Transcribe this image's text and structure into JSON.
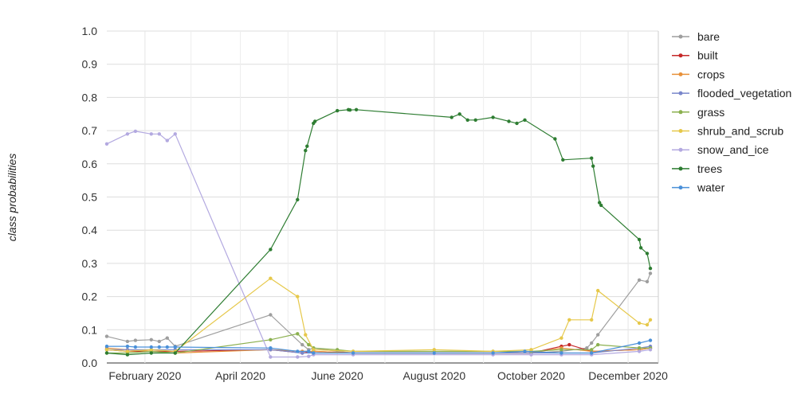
{
  "chart_data": {
    "type": "line",
    "ylabel": "class probabilities",
    "ylim": [
      0,
      1.0
    ],
    "y_ticks": [
      "0.0",
      "0.1",
      "0.2",
      "0.3",
      "0.4",
      "0.5",
      "0.6",
      "0.7",
      "0.8",
      "0.9",
      "1.0"
    ],
    "x_range": [
      "2020-01-08",
      "2020-12-20"
    ],
    "x_ticks": [
      {
        "date": "2020-02-01",
        "label": "February 2020"
      },
      {
        "date": "2020-04-01",
        "label": "April 2020"
      },
      {
        "date": "2020-06-01",
        "label": "June 2020"
      },
      {
        "date": "2020-08-01",
        "label": "August 2020"
      },
      {
        "date": "2020-10-01",
        "label": "October 2020"
      },
      {
        "date": "2020-12-01",
        "label": "December 2020"
      }
    ],
    "grid": true,
    "legend_position": "right",
    "series": [
      {
        "name": "bare",
        "color": "#9e9e9e",
        "points": [
          [
            "2020-01-08",
            0.08
          ],
          [
            "2020-01-21",
            0.065
          ],
          [
            "2020-01-26",
            0.068
          ],
          [
            "2020-02-05",
            0.07
          ],
          [
            "2020-02-10",
            0.065
          ],
          [
            "2020-02-15",
            0.075
          ],
          [
            "2020-02-20",
            0.05
          ],
          [
            "2020-04-20",
            0.145
          ],
          [
            "2020-05-10",
            0.055
          ],
          [
            "2020-05-14",
            0.04
          ],
          [
            "2020-05-17",
            0.045
          ],
          [
            "2020-06-01",
            0.035
          ],
          [
            "2020-06-11",
            0.03
          ],
          [
            "2020-09-07",
            0.03
          ],
          [
            "2020-10-01",
            0.03
          ],
          [
            "2020-10-20",
            0.035
          ],
          [
            "2020-11-05",
            0.045
          ],
          [
            "2020-11-08",
            0.06
          ],
          [
            "2020-11-12",
            0.085
          ],
          [
            "2020-12-08",
            0.25
          ],
          [
            "2020-12-13",
            0.245
          ],
          [
            "2020-12-15",
            0.27
          ]
        ]
      },
      {
        "name": "built",
        "color": "#c62828",
        "points": [
          [
            "2020-01-08",
            0.04
          ],
          [
            "2020-01-21",
            0.035
          ],
          [
            "2020-02-05",
            0.035
          ],
          [
            "2020-02-20",
            0.035
          ],
          [
            "2020-04-20",
            0.04
          ],
          [
            "2020-05-10",
            0.03
          ],
          [
            "2020-05-17",
            0.035
          ],
          [
            "2020-06-11",
            0.03
          ],
          [
            "2020-09-07",
            0.03
          ],
          [
            "2020-10-01",
            0.03
          ],
          [
            "2020-10-20",
            0.05
          ],
          [
            "2020-10-25",
            0.055
          ],
          [
            "2020-11-08",
            0.035
          ],
          [
            "2020-12-08",
            0.04
          ],
          [
            "2020-12-15",
            0.045
          ]
        ]
      },
      {
        "name": "crops",
        "color": "#e8913a",
        "points": [
          [
            "2020-01-08",
            0.045
          ],
          [
            "2020-01-21",
            0.04
          ],
          [
            "2020-02-05",
            0.035
          ],
          [
            "2020-02-20",
            0.03
          ],
          [
            "2020-04-20",
            0.04
          ],
          [
            "2020-05-10",
            0.035
          ],
          [
            "2020-05-17",
            0.035
          ],
          [
            "2020-06-11",
            0.03
          ],
          [
            "2020-09-07",
            0.03
          ],
          [
            "2020-10-01",
            0.03
          ],
          [
            "2020-10-20",
            0.045
          ],
          [
            "2020-11-08",
            0.035
          ],
          [
            "2020-12-08",
            0.04
          ],
          [
            "2020-12-15",
            0.045
          ]
        ]
      },
      {
        "name": "flooded_vegetation",
        "color": "#7986cb",
        "points": [
          [
            "2020-01-08",
            0.04
          ],
          [
            "2020-01-21",
            0.04
          ],
          [
            "2020-02-05",
            0.04
          ],
          [
            "2020-02-20",
            0.04
          ],
          [
            "2020-04-20",
            0.04
          ],
          [
            "2020-05-10",
            0.03
          ],
          [
            "2020-05-17",
            0.03
          ],
          [
            "2020-06-11",
            0.03
          ],
          [
            "2020-09-07",
            0.03
          ],
          [
            "2020-10-01",
            0.03
          ],
          [
            "2020-10-20",
            0.03
          ],
          [
            "2020-11-08",
            0.03
          ],
          [
            "2020-12-08",
            0.045
          ],
          [
            "2020-12-15",
            0.05
          ]
        ]
      },
      {
        "name": "grass",
        "color": "#8bb04f",
        "points": [
          [
            "2020-01-08",
            0.03
          ],
          [
            "2020-01-21",
            0.03
          ],
          [
            "2020-02-05",
            0.035
          ],
          [
            "2020-02-20",
            0.03
          ],
          [
            "2020-04-20",
            0.07
          ],
          [
            "2020-05-07",
            0.088
          ],
          [
            "2020-05-14",
            0.055
          ],
          [
            "2020-05-17",
            0.045
          ],
          [
            "2020-06-01",
            0.04
          ],
          [
            "2020-06-11",
            0.035
          ],
          [
            "2020-09-07",
            0.035
          ],
          [
            "2020-10-01",
            0.035
          ],
          [
            "2020-10-20",
            0.04
          ],
          [
            "2020-11-08",
            0.04
          ],
          [
            "2020-11-12",
            0.055
          ],
          [
            "2020-12-08",
            0.045
          ],
          [
            "2020-12-15",
            0.045
          ]
        ]
      },
      {
        "name": "shrub_and_scrub",
        "color": "#e6c84a",
        "points": [
          [
            "2020-01-08",
            0.04
          ],
          [
            "2020-01-21",
            0.035
          ],
          [
            "2020-02-05",
            0.04
          ],
          [
            "2020-02-20",
            0.035
          ],
          [
            "2020-04-20",
            0.255
          ],
          [
            "2020-05-07",
            0.2
          ],
          [
            "2020-05-12",
            0.085
          ],
          [
            "2020-05-17",
            0.04
          ],
          [
            "2020-06-11",
            0.035
          ],
          [
            "2020-08-01",
            0.04
          ],
          [
            "2020-09-07",
            0.035
          ],
          [
            "2020-10-01",
            0.04
          ],
          [
            "2020-10-20",
            0.075
          ],
          [
            "2020-10-25",
            0.13
          ],
          [
            "2020-11-08",
            0.13
          ],
          [
            "2020-11-12",
            0.218
          ],
          [
            "2020-12-08",
            0.12
          ],
          [
            "2020-12-13",
            0.115
          ],
          [
            "2020-12-15",
            0.13
          ]
        ]
      },
      {
        "name": "snow_and_ice",
        "color": "#b3a9e0",
        "points": [
          [
            "2020-01-08",
            0.66
          ],
          [
            "2020-01-21",
            0.69
          ],
          [
            "2020-01-26",
            0.698
          ],
          [
            "2020-02-05",
            0.69
          ],
          [
            "2020-02-10",
            0.69
          ],
          [
            "2020-02-15",
            0.67
          ],
          [
            "2020-02-20",
            0.69
          ],
          [
            "2020-04-20",
            0.018
          ],
          [
            "2020-05-07",
            0.018
          ],
          [
            "2020-05-14",
            0.02
          ],
          [
            "2020-05-17",
            0.025
          ],
          [
            "2020-06-11",
            0.025
          ],
          [
            "2020-09-07",
            0.025
          ],
          [
            "2020-10-01",
            0.025
          ],
          [
            "2020-10-20",
            0.025
          ],
          [
            "2020-11-08",
            0.025
          ],
          [
            "2020-12-08",
            0.035
          ],
          [
            "2020-12-15",
            0.04
          ]
        ]
      },
      {
        "name": "trees",
        "color": "#2e7d32",
        "points": [
          [
            "2020-01-08",
            0.03
          ],
          [
            "2020-01-21",
            0.025
          ],
          [
            "2020-02-05",
            0.03
          ],
          [
            "2020-02-20",
            0.03
          ],
          [
            "2020-04-20",
            0.342
          ],
          [
            "2020-05-07",
            0.492
          ],
          [
            "2020-05-12",
            0.64
          ],
          [
            "2020-05-13",
            0.653
          ],
          [
            "2020-05-17",
            0.722
          ],
          [
            "2020-05-18",
            0.728
          ],
          [
            "2020-06-01",
            0.76
          ],
          [
            "2020-06-08",
            0.763
          ],
          [
            "2020-06-09",
            0.762
          ],
          [
            "2020-06-13",
            0.763
          ],
          [
            "2020-08-12",
            0.74
          ],
          [
            "2020-08-17",
            0.75
          ],
          [
            "2020-08-22",
            0.732
          ],
          [
            "2020-08-27",
            0.732
          ],
          [
            "2020-09-07",
            0.74
          ],
          [
            "2020-09-17",
            0.728
          ],
          [
            "2020-09-22",
            0.722
          ],
          [
            "2020-09-27",
            0.732
          ],
          [
            "2020-10-16",
            0.675
          ],
          [
            "2020-10-21",
            0.612
          ],
          [
            "2020-11-08",
            0.617
          ],
          [
            "2020-11-09",
            0.593
          ],
          [
            "2020-11-13",
            0.483
          ],
          [
            "2020-11-14",
            0.475
          ],
          [
            "2020-12-08",
            0.372
          ],
          [
            "2020-12-09",
            0.347
          ],
          [
            "2020-12-13",
            0.33
          ],
          [
            "2020-12-15",
            0.285
          ]
        ]
      },
      {
        "name": "water",
        "color": "#4a90d9",
        "points": [
          [
            "2020-01-08",
            0.05
          ],
          [
            "2020-01-21",
            0.05
          ],
          [
            "2020-01-26",
            0.048
          ],
          [
            "2020-02-05",
            0.048
          ],
          [
            "2020-02-10",
            0.048
          ],
          [
            "2020-02-15",
            0.048
          ],
          [
            "2020-02-20",
            0.048
          ],
          [
            "2020-04-20",
            0.045
          ],
          [
            "2020-05-07",
            0.035
          ],
          [
            "2020-05-14",
            0.035
          ],
          [
            "2020-05-17",
            0.03
          ],
          [
            "2020-06-11",
            0.03
          ],
          [
            "2020-08-01",
            0.03
          ],
          [
            "2020-09-07",
            0.03
          ],
          [
            "2020-09-27",
            0.035
          ],
          [
            "2020-10-20",
            0.03
          ],
          [
            "2020-11-08",
            0.03
          ],
          [
            "2020-12-08",
            0.06
          ],
          [
            "2020-12-15",
            0.068
          ]
        ]
      }
    ]
  }
}
